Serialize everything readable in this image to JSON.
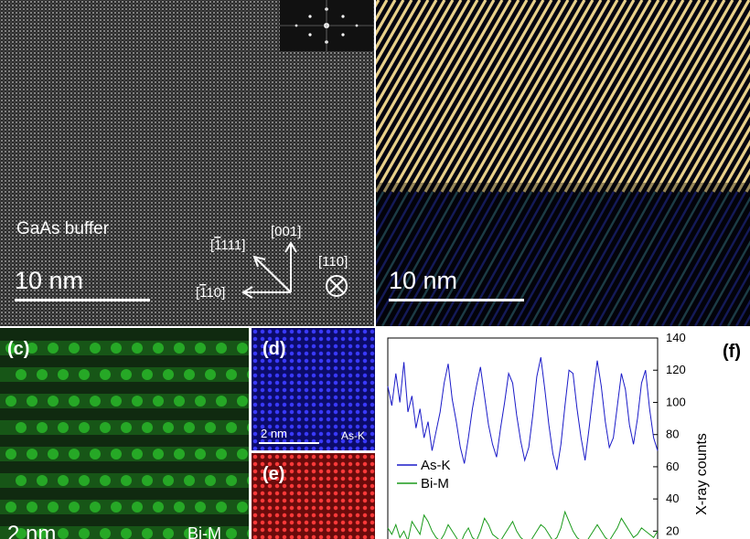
{
  "panel_a": {
    "region_label": "GaAs buffer",
    "scale_bar": "10 nm",
    "dir_1": "[",
    "dir_1_digits": "111]",
    "dir_1_bar_digit": "1",
    "dir_001": "[001]",
    "dir_2_digits": "10]",
    "dir_110": "[110]"
  },
  "panel_b": {
    "scale_bar": "10 nm"
  },
  "panel_c": {
    "tag": "(c)",
    "scale_bar": "2 nm",
    "element": "Bi-M"
  },
  "panel_d": {
    "tag": "(d)",
    "scale_bar": "2 nm",
    "element": "As-K"
  },
  "panel_e": {
    "tag": "(e)"
  },
  "panel_f": {
    "tag": "(f)",
    "ylabel": "X-ray counts"
  },
  "chart_data": {
    "type": "line",
    "ylabel": "X-ray counts",
    "ylim": [
      10,
      140
    ],
    "yticks": [
      20,
      40,
      60,
      80,
      100,
      120,
      140
    ],
    "series": [
      {
        "name": "As-K",
        "color": "#1a1ac8",
        "values": [
          110,
          98,
          118,
          100,
          125,
          94,
          104,
          84,
          96,
          78,
          88,
          70,
          82,
          94,
          112,
          124,
          102,
          88,
          72,
          62,
          78,
          96,
          110,
          122,
          104,
          86,
          74,
          66,
          84,
          100,
          118,
          112,
          92,
          76,
          64,
          72,
          92,
          116,
          128,
          108,
          86,
          68,
          58,
          74,
          98,
          120,
          118,
          96,
          78,
          64,
          84,
          106,
          126,
          110,
          88,
          72,
          78,
          98,
          118,
          108,
          86,
          74,
          90,
          112,
          120,
          96,
          78,
          70
        ]
      },
      {
        "name": "Bi-M",
        "color": "#1a9a1a",
        "values": [
          22,
          18,
          24,
          16,
          20,
          14,
          26,
          22,
          18,
          30,
          26,
          20,
          16,
          14,
          18,
          24,
          20,
          16,
          12,
          18,
          22,
          16,
          14,
          20,
          28,
          24,
          18,
          16,
          14,
          18,
          22,
          26,
          20,
          16,
          14,
          12,
          16,
          20,
          24,
          22,
          18,
          14,
          16,
          22,
          32,
          26,
          20,
          16,
          14,
          12,
          16,
          20,
          24,
          20,
          16,
          14,
          18,
          22,
          28,
          24,
          20,
          16,
          18,
          22,
          20,
          18,
          16,
          20
        ]
      }
    ]
  },
  "colors": {
    "as_map": "#2020e0",
    "bi_map": "#e02020",
    "hrstem_green": "#2ecc2e"
  },
  "icons": [
    "into-page-icon",
    "direction-arrow-icon"
  ]
}
